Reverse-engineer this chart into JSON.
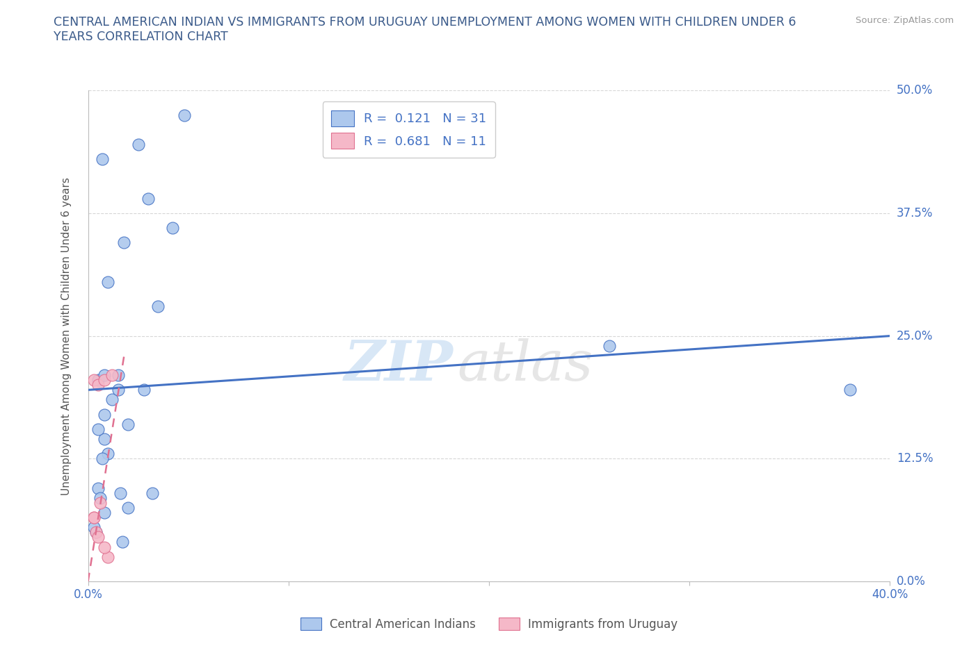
{
  "title": "CENTRAL AMERICAN INDIAN VS IMMIGRANTS FROM URUGUAY UNEMPLOYMENT AMONG WOMEN WITH CHILDREN UNDER 6\nYEARS CORRELATION CHART",
  "source": "Source: ZipAtlas.com",
  "ylabel": "Unemployment Among Women with Children Under 6 years",
  "watermark_zip": "ZIP",
  "watermark_atlas": "atlas",
  "blue_R": 0.121,
  "blue_N": 31,
  "pink_R": 0.681,
  "pink_N": 11,
  "blue_color": "#adc8ed",
  "pink_color": "#f5b8c8",
  "blue_line_color": "#4472c4",
  "pink_line_color": "#e07090",
  "ytick_labels": [
    "0.0%",
    "12.5%",
    "25.0%",
    "37.5%",
    "50.0%"
  ],
  "ytick_values": [
    0.0,
    12.5,
    25.0,
    37.5,
    50.0
  ],
  "blue_x": [
    1.5,
    2.5,
    1.8,
    3.0,
    4.2,
    1.0,
    0.5,
    3.5,
    0.8,
    1.2,
    1.5,
    2.0,
    2.8,
    0.8,
    1.0,
    0.7,
    0.5,
    0.6,
    1.6,
    0.5,
    0.4,
    0.3,
    4.8,
    0.7,
    26.0,
    38.0,
    0.8,
    2.0,
    0.8,
    1.7,
    3.2
  ],
  "blue_y": [
    21.0,
    44.5,
    34.5,
    39.0,
    36.0,
    30.5,
    20.5,
    28.0,
    17.0,
    18.5,
    19.5,
    16.0,
    19.5,
    14.5,
    13.0,
    12.5,
    9.5,
    8.5,
    9.0,
    15.5,
    5.0,
    5.5,
    47.5,
    43.0,
    24.0,
    19.5,
    21.0,
    7.5,
    7.0,
    4.0,
    9.0
  ],
  "pink_x": [
    0.3,
    0.5,
    0.8,
    1.2,
    0.3,
    0.4,
    0.5,
    0.6,
    0.3,
    1.0,
    0.8
  ],
  "pink_y": [
    20.5,
    20.0,
    20.5,
    21.0,
    6.5,
    5.0,
    4.5,
    8.0,
    6.5,
    2.5,
    3.5
  ],
  "xlim": [
    0.0,
    40.0
  ],
  "ylim": [
    0.0,
    50.0
  ],
  "blue_trendline_y0": 19.5,
  "blue_trendline_y1": 25.0,
  "pink_trendline_x0": 0.0,
  "pink_trendline_y0": 0.0,
  "pink_trendline_x1": 1.8,
  "pink_trendline_y1": 23.0,
  "background_color": "#ffffff",
  "grid_color": "#cccccc"
}
